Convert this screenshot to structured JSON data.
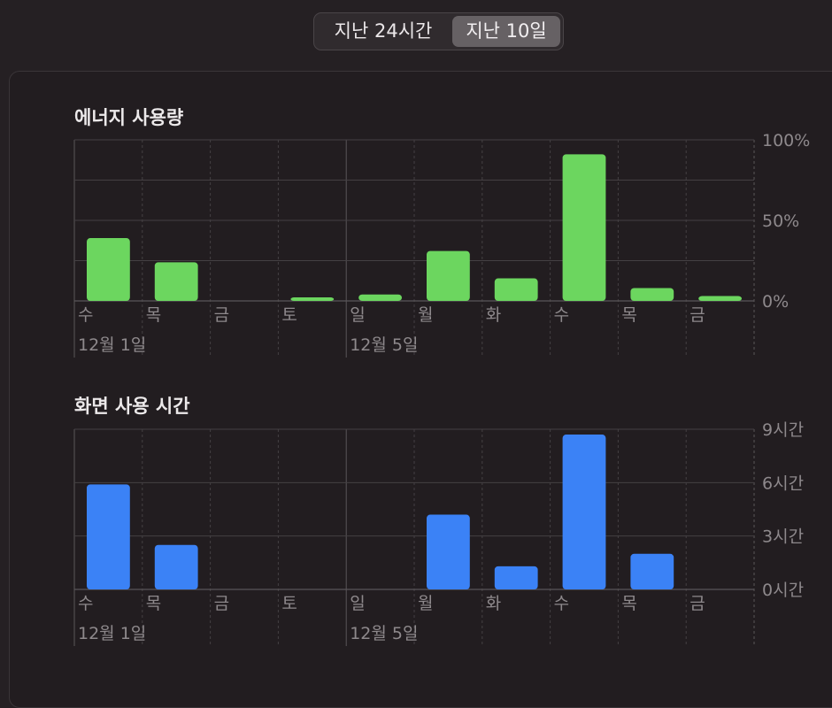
{
  "range_control": {
    "options": [
      "지난 24시간",
      "지난 10일"
    ],
    "selected": "지난 10일"
  },
  "colors": {
    "energy_bar": "#6cd65f",
    "screen_bar": "#3b82f6",
    "grid": "#444043",
    "label": "#8e898c"
  },
  "chart_data": [
    {
      "type": "bar",
      "title": "에너지 사용량",
      "categories": [
        "수",
        "목",
        "금",
        "토",
        "일",
        "월",
        "화",
        "수",
        "목",
        "금"
      ],
      "date_labels": [
        {
          "index": 0,
          "label": "12월 1일"
        },
        {
          "index": 4,
          "label": "12월 5일"
        }
      ],
      "values": [
        39,
        24,
        0,
        2,
        4,
        31,
        14,
        91,
        8,
        3
      ],
      "ylim": [
        0,
        100
      ],
      "yticks": [
        0,
        50,
        100
      ],
      "ytick_labels": [
        "0%",
        "50%",
        "100%"
      ],
      "y_unit": "%",
      "grid": true
    },
    {
      "type": "bar",
      "title": "화면 사용 시간",
      "categories": [
        "수",
        "목",
        "금",
        "토",
        "일",
        "월",
        "화",
        "수",
        "목",
        "금"
      ],
      "date_labels": [
        {
          "index": 0,
          "label": "12월 1일"
        },
        {
          "index": 4,
          "label": "12월 5일"
        }
      ],
      "values": [
        5.9,
        2.5,
        0,
        0,
        0,
        4.2,
        1.3,
        8.7,
        2.0,
        0
      ],
      "ylim": [
        0,
        9
      ],
      "yticks": [
        0,
        3,
        6,
        9
      ],
      "ytick_labels": [
        "0시간",
        "3시간",
        "6시간",
        "9시간"
      ],
      "y_unit": "시간",
      "grid": true
    }
  ]
}
